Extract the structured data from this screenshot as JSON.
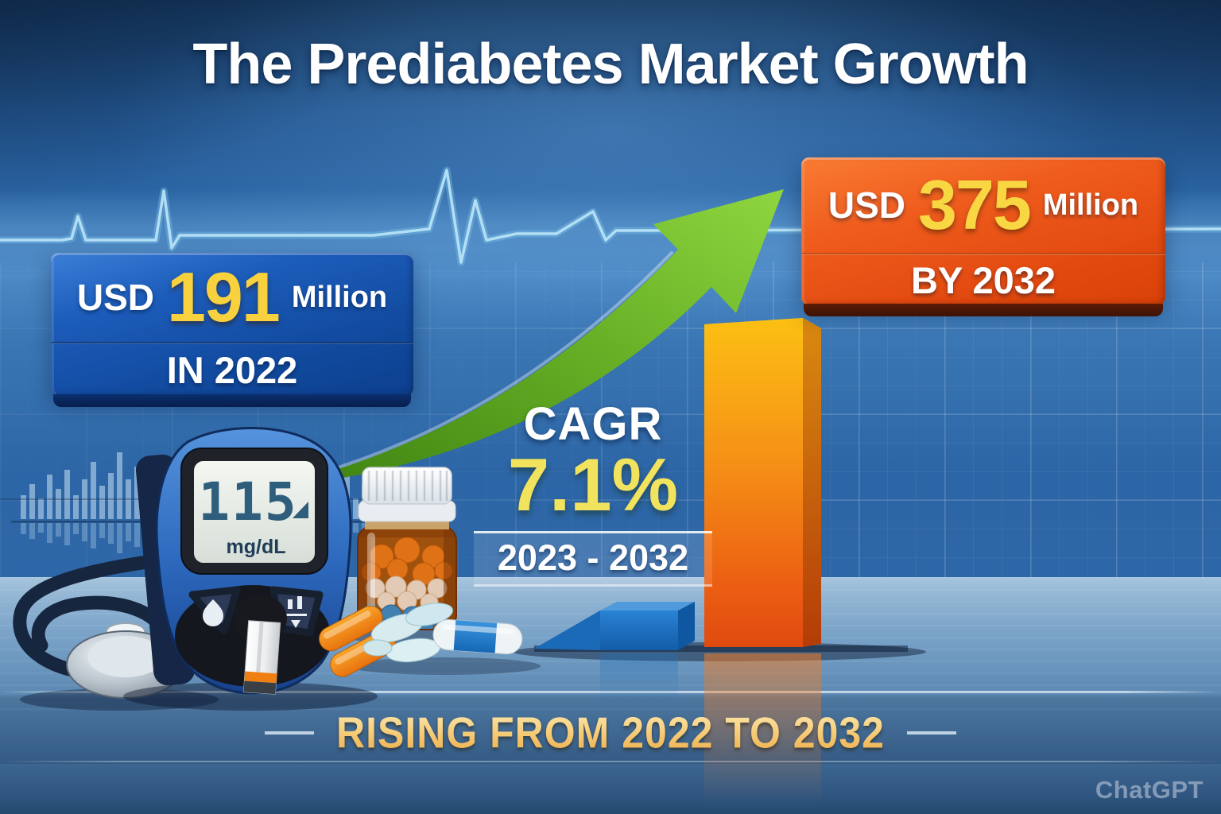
{
  "title": "The Prediabetes Market Growth",
  "start_box": {
    "currency": "USD",
    "value": "191",
    "unit": "Million",
    "period": "IN 2022"
  },
  "end_box": {
    "currency": "USD",
    "value": "375",
    "unit": "Million",
    "period": "BY 2032"
  },
  "cagr": {
    "label": "CAGR",
    "value": "7.1%",
    "period": "2023 - 2032"
  },
  "footer_banner": "RISING FROM 2022 TO 2032",
  "watermark": "ChatGPT",
  "glucose_meter": {
    "reading": "115",
    "unit": "mg/dL"
  },
  "colors": {
    "background_blue": "#2E6AB0",
    "box_blue": "#1558B4",
    "box_orange": "#E8521A",
    "accent_yellow": "#F7D23E",
    "arrow_green": "#6FBE2E",
    "floor_blue": "#7AA3C8"
  },
  "chart_data": {
    "type": "bar",
    "categories": [
      "2022",
      "2032"
    ],
    "values": [
      191,
      375
    ],
    "unit": "USD Million",
    "title": "The Prediabetes Market Growth",
    "annotations": [
      "CAGR 7.1%",
      "2023 - 2032",
      "RISING FROM 2022 TO 2032"
    ],
    "bar_colors": [
      "#1E78C8",
      "#F58A17"
    ],
    "legend": false,
    "axes_shown": false
  }
}
